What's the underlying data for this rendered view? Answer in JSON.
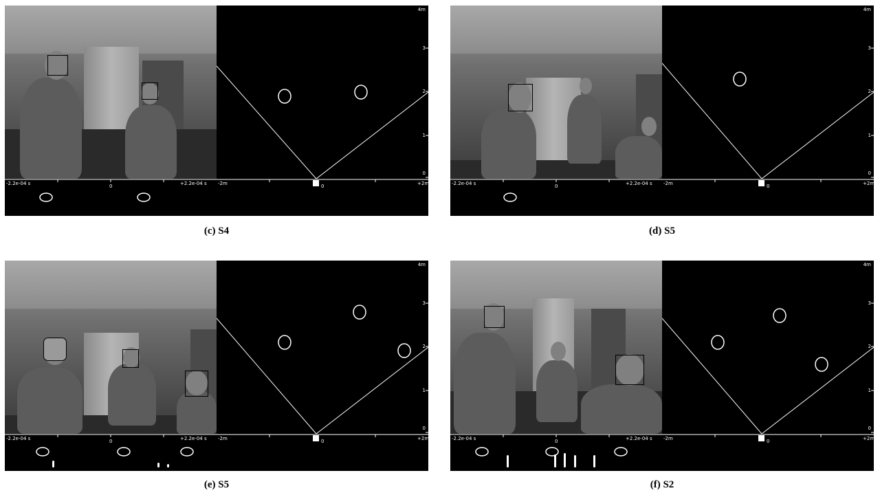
{
  "panels": [
    {
      "caption": "(c) S4",
      "time_axis": {
        "left": "-2.2e-04 s",
        "center": "0",
        "right": "+2.2e-04 s"
      },
      "map_axis": {
        "left": "-2m",
        "center": "0",
        "right": "+2m",
        "top": "4m",
        "y_ticks": [
          "3",
          "2",
          "1",
          "0"
        ]
      },
      "faces": 2,
      "occluded_faces": 0,
      "tracked_targets": 2,
      "audio_ellipses": 2,
      "audio_spikes": 0
    },
    {
      "caption": "(d) S5",
      "time_axis": {
        "left": "-2.2e-04 s",
        "center": "0",
        "right": "+2.2e-04 s"
      },
      "map_axis": {
        "left": "-2m",
        "center": "0",
        "right": "+2m",
        "top": "4m",
        "y_ticks": [
          "3",
          "2",
          "1",
          "0"
        ]
      },
      "faces": 1,
      "occluded_faces": 0,
      "tracked_targets": 1,
      "audio_ellipses": 1,
      "audio_spikes": 0
    },
    {
      "caption": "(e) S5",
      "time_axis": {
        "left": "-2.2e-04 s",
        "center": "0",
        "right": "+2.2e-04 s"
      },
      "map_axis": {
        "left": "-2m",
        "center": "0",
        "right": "+2m",
        "top": "4m",
        "y_ticks": [
          "3",
          "2",
          "1",
          "0"
        ]
      },
      "faces": 2,
      "occluded_faces": 1,
      "tracked_targets": 3,
      "audio_ellipses": 3,
      "audio_spikes": 3
    },
    {
      "caption": "(f) S2",
      "time_axis": {
        "left": "-2.2e-04 s",
        "center": "0",
        "right": "+2.2e-04 s"
      },
      "map_axis": {
        "left": "-2m",
        "center": "0",
        "right": "+2m",
        "top": "4m",
        "y_ticks": [
          "3",
          "2",
          "1",
          "0"
        ]
      },
      "faces": 2,
      "occluded_faces": 1,
      "tracked_targets": 3,
      "audio_ellipses": 3,
      "audio_spikes": 5
    }
  ],
  "colors": {
    "map_bg": "#000000",
    "marks": "#ffffff",
    "face_box": "#000000"
  }
}
